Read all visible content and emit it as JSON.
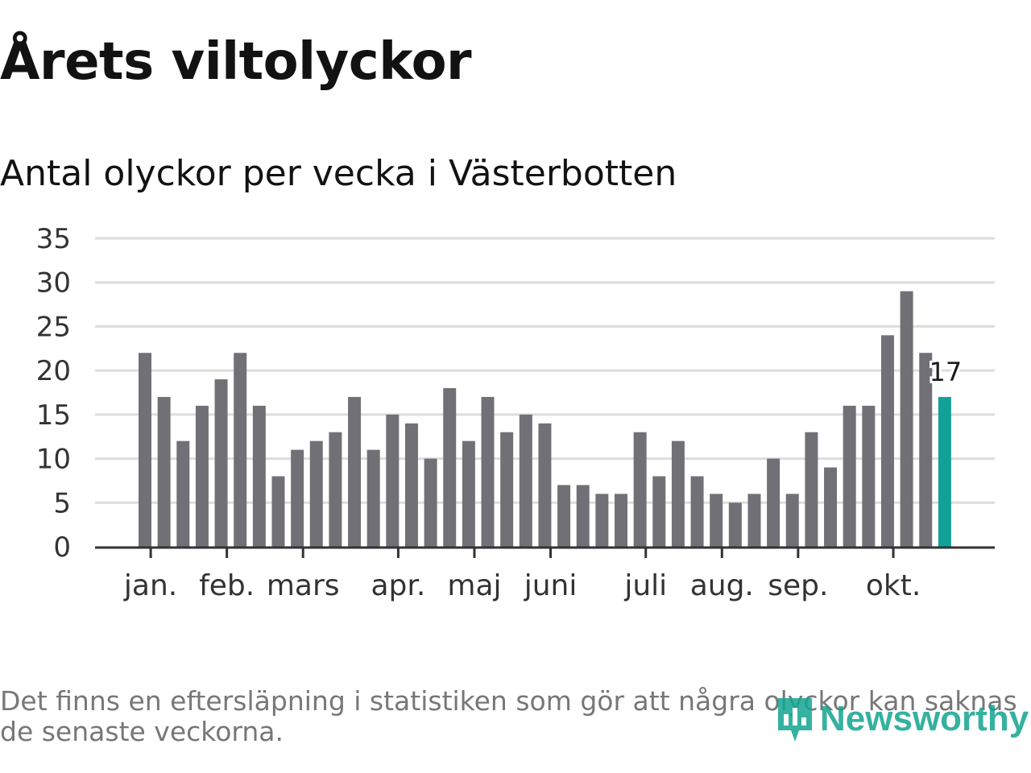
{
  "header": {
    "title": "Årets viltolyckor",
    "subtitle": "Antal olyckor per vecka i Västerbotten"
  },
  "footer": {
    "note": "Det finns en eftersläpning i statistiken som gör att några olyckor kan saknas de senaste veckorna.",
    "brand": "Newsworthy"
  },
  "colors": {
    "bar": "#727077",
    "highlight": "#12a199",
    "grid": "#dddddd",
    "axis": "#333333"
  },
  "chart_data": {
    "type": "bar",
    "title": "Antal olyckor per vecka i Västerbotten",
    "xlabel": "",
    "ylabel": "",
    "ylim": [
      0,
      35
    ],
    "yticks": [
      0,
      5,
      10,
      15,
      20,
      25,
      30,
      35
    ],
    "grid": true,
    "values": [
      22,
      17,
      12,
      16,
      19,
      22,
      16,
      8,
      11,
      12,
      13,
      17,
      11,
      15,
      14,
      10,
      18,
      12,
      17,
      13,
      15,
      14,
      7,
      7,
      6,
      6,
      13,
      8,
      12,
      8,
      6,
      5,
      6,
      10,
      6,
      13,
      9,
      16,
      16,
      24,
      29,
      22,
      17
    ],
    "highlight_index": 42,
    "highlight_label": "17",
    "month_ticks": [
      {
        "label": "jan.",
        "week_index": 0.3
      },
      {
        "label": "feb.",
        "week_index": 4.3
      },
      {
        "label": "mars",
        "week_index": 8.3
      },
      {
        "label": "apr.",
        "week_index": 13.3
      },
      {
        "label": "maj",
        "week_index": 17.3
      },
      {
        "label": "juni",
        "week_index": 21.3
      },
      {
        "label": "juli",
        "week_index": 26.3
      },
      {
        "label": "aug.",
        "week_index": 30.3
      },
      {
        "label": "sep.",
        "week_index": 34.3
      },
      {
        "label": "okt.",
        "week_index": 39.3
      }
    ]
  }
}
